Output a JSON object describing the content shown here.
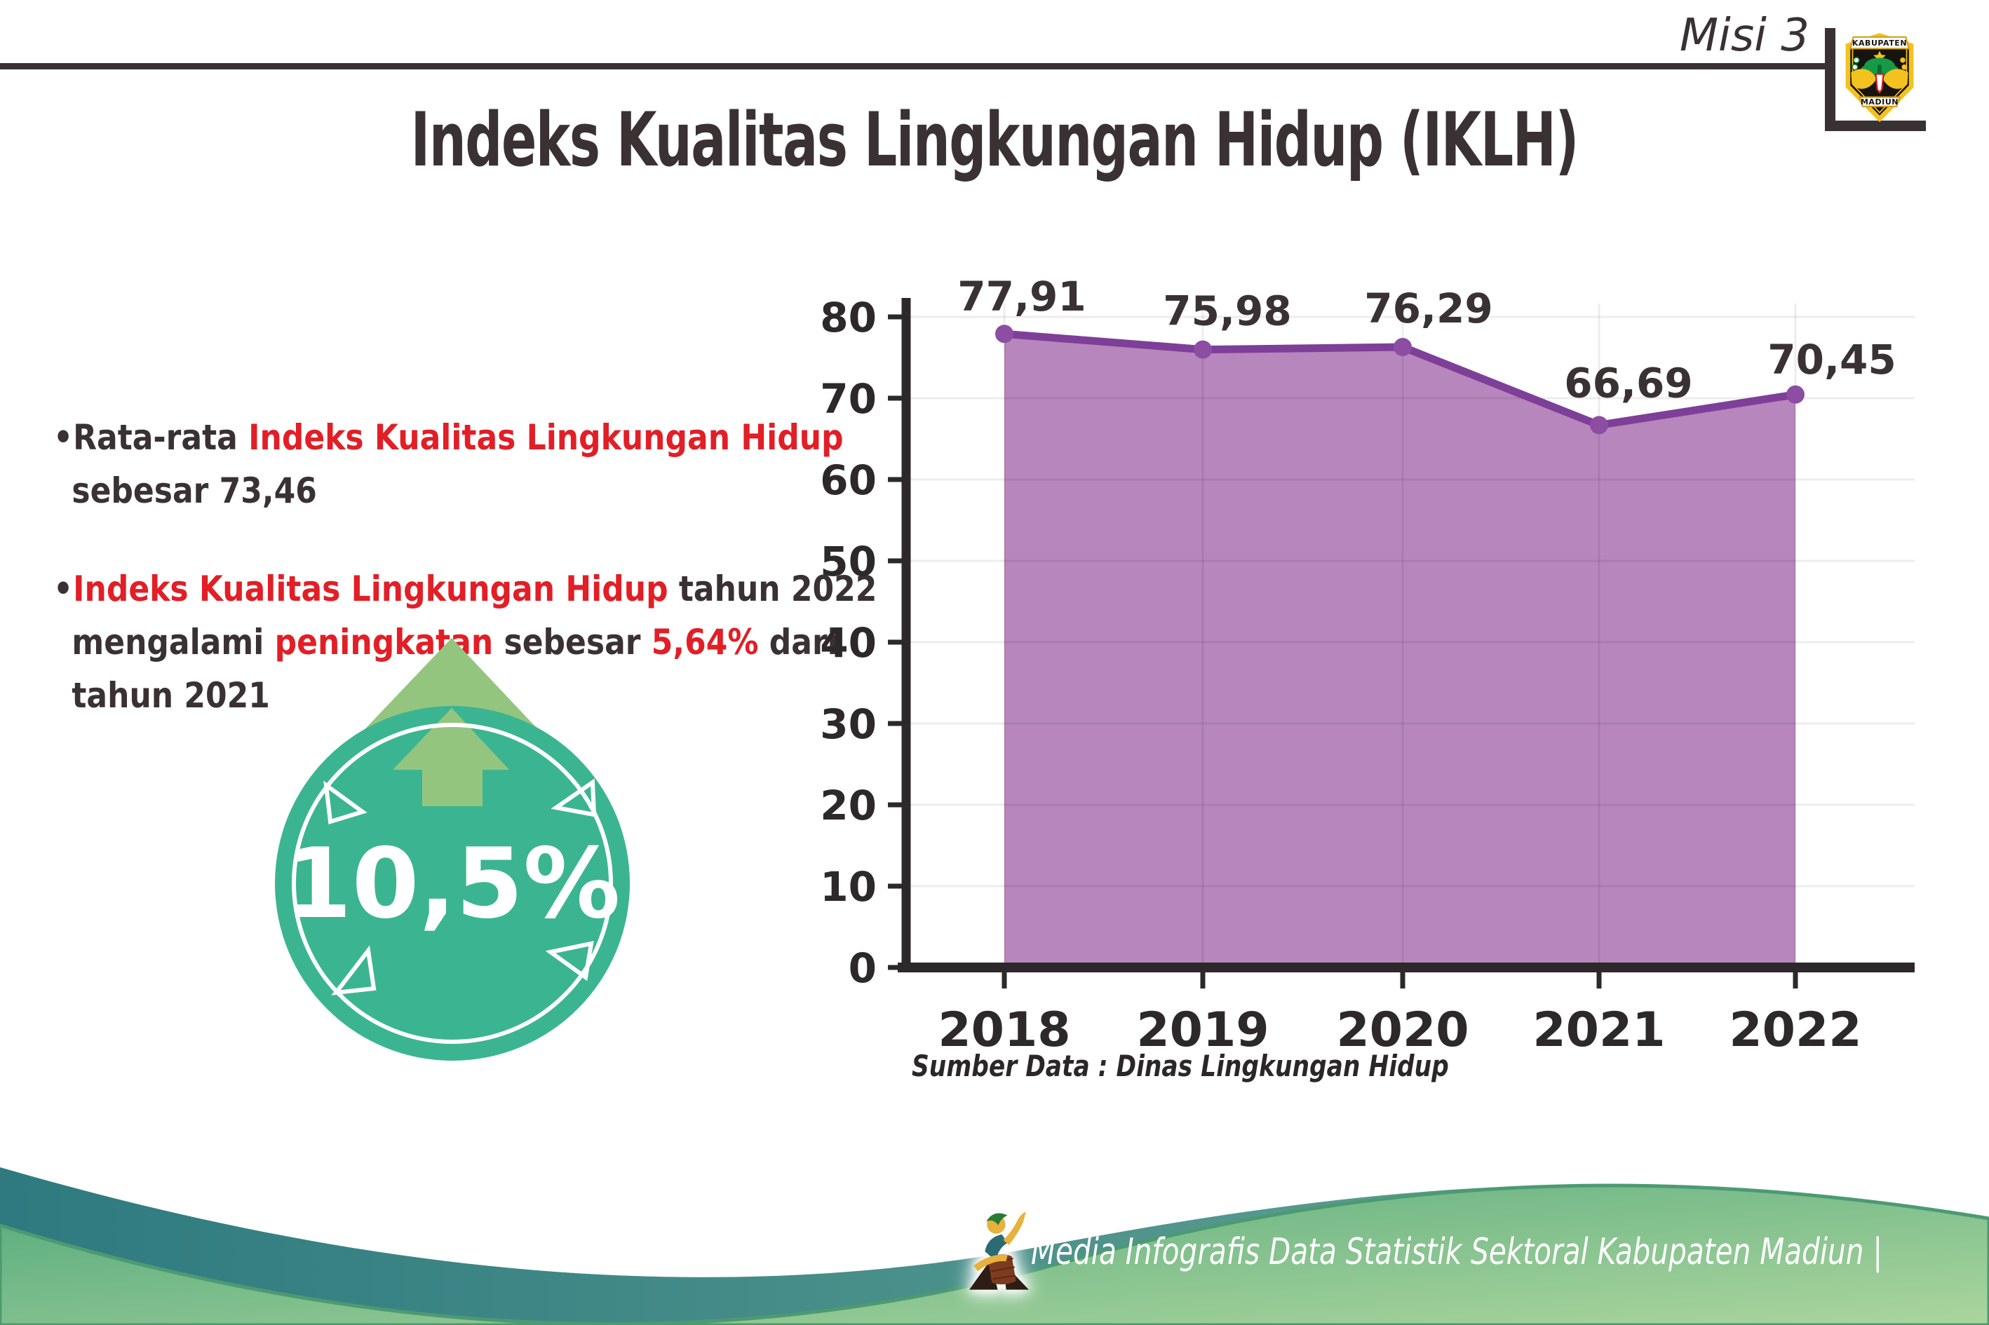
{
  "colors": {
    "dark": "#3a3132",
    "red": "#e21e26",
    "axis": "#2d2829",
    "teal_badge": "#3bb591",
    "arrow_green": "#94c57f",
    "arrow_outline_navy": "#2c3a63",
    "footer_teal_start": "#2e7a80",
    "footer_teal_end": "#6aa895",
    "footer_green_start": "#54a97c",
    "footer_green_end": "#abd59d"
  },
  "header": {
    "misi_label": "Misi 3"
  },
  "logo": {
    "top_banner": "KABUPATEN",
    "bottom_banner": "MADIUN"
  },
  "title": "Indeks Kualitas Lingkungan Hidup (IKLH)",
  "bullets": {
    "b1": {
      "parts": [
        {
          "t": "•Rata-rata ",
          "c": "dark"
        },
        {
          "t": "Indeks Kualitas Lingkungan Hidup",
          "c": "red"
        },
        {
          "br": true
        },
        {
          "t": "sebesar 73,46",
          "c": "dark"
        }
      ]
    },
    "b2": {
      "parts": [
        {
          "t": "•",
          "c": "dark"
        },
        {
          "t": "Indeks Kualitas Lingkungan Hidup",
          "c": "red"
        },
        {
          "t": " tahun 2022",
          "c": "dark"
        },
        {
          "br": true
        },
        {
          "t": "mengalami ",
          "c": "dark"
        },
        {
          "t": "peningkatan",
          "c": "red"
        },
        {
          "t": " sebesar ",
          "c": "dark"
        },
        {
          "t": "5,64%",
          "c": "red"
        },
        {
          "t": " dari",
          "c": "dark"
        },
        {
          "br": true
        },
        {
          "t": "tahun 2021",
          "c": "dark"
        }
      ]
    }
  },
  "badge": {
    "value": "10,5%"
  },
  "chart_data": {
    "type": "area",
    "categories": [
      "2018",
      "2019",
      "2020",
      "2021",
      "2022"
    ],
    "series": [
      {
        "name": "IKLH",
        "values": [
          77.91,
          75.98,
          76.29,
          66.69,
          70.45
        ]
      }
    ],
    "value_labels": [
      "77,91",
      "75,98",
      "76,29",
      "66,69",
      "70,45"
    ],
    "title": "Indeks Kualitas Lingkungan Hidup (IKLH)",
    "xlabel": "",
    "ylabel": "",
    "ylim": [
      0,
      80
    ],
    "ytick_step": 10,
    "grid": true,
    "legend": false,
    "line_color": "#7e3f98",
    "fill_color": "#b786bd",
    "marker_color": "#8c4da3",
    "source": "Sumber Data : Dinas Lingkungan Hidup"
  },
  "footer": {
    "text": "Media Infografis Data Statistik Sektoral Kabupaten Madiun |"
  }
}
